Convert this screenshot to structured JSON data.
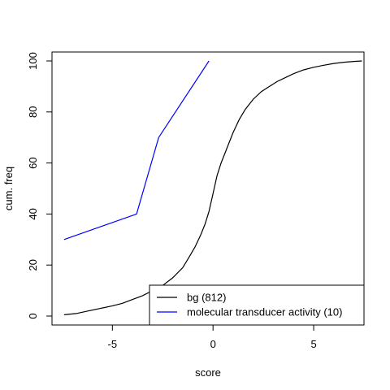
{
  "chart_data": {
    "type": "line",
    "title": "",
    "xlabel": "score",
    "ylabel": "cum. freq",
    "xlim": [
      -8.0,
      7.5
    ],
    "ylim": [
      -3.5,
      103.5
    ],
    "xticks": [
      -5,
      0,
      5
    ],
    "xtick_labels": [
      "-5",
      "0",
      "5"
    ],
    "yticks": [
      0,
      20,
      40,
      60,
      80,
      100
    ],
    "ytick_labels": [
      "0",
      "20",
      "40",
      "60",
      "80",
      "100"
    ],
    "grid": false,
    "legend": {
      "position": "bottom-right"
    },
    "series": [
      {
        "name": "bg (812)",
        "color": "#000000",
        "x": [
          -7.4,
          -6.8,
          -6.2,
          -5.6,
          -5.0,
          -4.5,
          -4.0,
          -3.5,
          -3.0,
          -2.5,
          -2.0,
          -1.5,
          -1.2,
          -0.9,
          -0.6,
          -0.4,
          -0.2,
          0.0,
          0.2,
          0.4,
          0.6,
          0.8,
          1.0,
          1.3,
          1.6,
          2.0,
          2.4,
          2.8,
          3.2,
          3.6,
          4.0,
          4.5,
          5.0,
          5.5,
          6.0,
          6.5,
          7.0,
          7.4
        ],
        "y": [
          0.5,
          1,
          2,
          3,
          4,
          5,
          6.5,
          8,
          10,
          12,
          15,
          19,
          23,
          27,
          32,
          36,
          41,
          48,
          55,
          60,
          64,
          68,
          72,
          77,
          81,
          85,
          88,
          90,
          92,
          93.5,
          95,
          96.5,
          97.5,
          98.3,
          99,
          99.5,
          99.8,
          100
        ]
      },
      {
        "name": "molecular transducer activity (10)",
        "color": "#0000ff",
        "x": [
          -7.4,
          -3.8,
          -2.7,
          -0.2
        ],
        "y": [
          30,
          40,
          70,
          100
        ]
      }
    ]
  }
}
